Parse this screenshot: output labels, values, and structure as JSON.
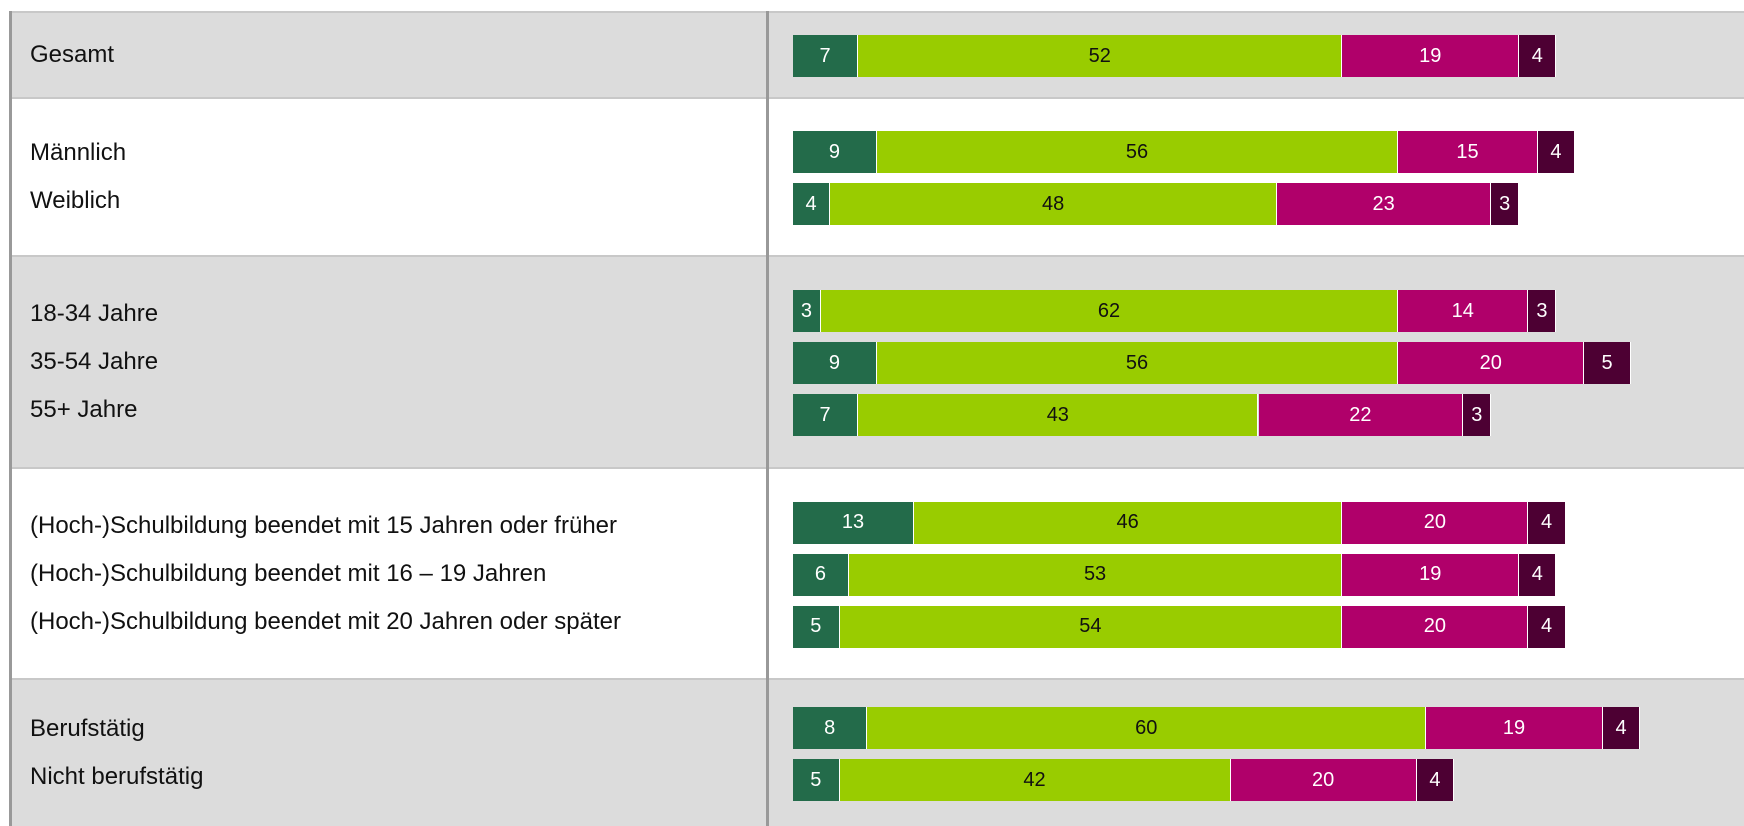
{
  "chart_data": {
    "type": "bar",
    "stacked": true,
    "colors": [
      "#236b4a",
      "#99cc00",
      "#b0006a",
      "#4d0033"
    ],
    "groups": [
      {
        "categories": [
          "Gesamt"
        ],
        "values": [
          [
            7,
            52,
            19,
            4
          ]
        ]
      },
      {
        "categories": [
          "Männlich",
          "Weiblich"
        ],
        "values": [
          [
            9,
            56,
            15,
            4
          ],
          [
            4,
            48,
            23,
            3
          ]
        ]
      },
      {
        "categories": [
          "18-34 Jahre",
          "35-54 Jahre",
          "55+ Jahre"
        ],
        "values": [
          [
            3,
            62,
            14,
            3
          ],
          [
            9,
            56,
            20,
            5
          ],
          [
            7,
            43,
            22,
            3
          ]
        ]
      },
      {
        "categories": [
          "(Hoch-)Schulbildung beendet mit 15 Jahren oder früher",
          "(Hoch-)Schulbildung beendet mit 16 – 19 Jahren",
          "(Hoch-)Schulbildung beendet mit 20 Jahren oder später"
        ],
        "values": [
          [
            13,
            46,
            20,
            4
          ],
          [
            6,
            53,
            19,
            4
          ],
          [
            5,
            54,
            20,
            4
          ]
        ]
      },
      {
        "categories": [
          "Berufstätig",
          "Nicht berufstätig"
        ],
        "values": [
          [
            8,
            60,
            19,
            4
          ],
          [
            5,
            42,
            20,
            4
          ]
        ]
      }
    ]
  }
}
